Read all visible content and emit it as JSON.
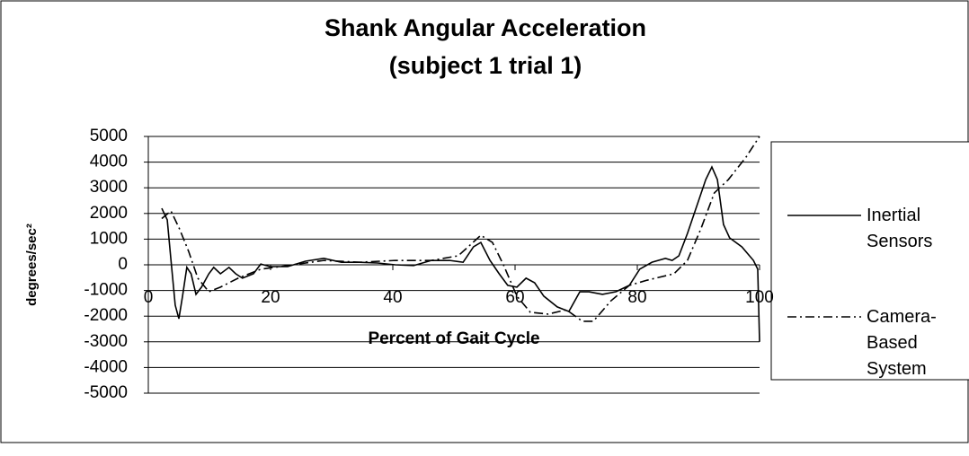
{
  "chart_data": {
    "type": "line",
    "title": "Shank Angular Acceleration",
    "subtitle": "(subject 1 trial 1)",
    "x_label": "Percent of Gait Cycle",
    "y_label": "degrees/sec²",
    "xlim": [
      0,
      100
    ],
    "xticks": [
      0,
      20,
      40,
      60,
      80,
      100
    ],
    "ylim": [
      -5000,
      5000
    ],
    "yticks": [
      -5000,
      -4000,
      -3000,
      -2000,
      -1000,
      0,
      1000,
      2000,
      3000,
      4000,
      5000
    ],
    "grid": true,
    "legend": "right",
    "series": [
      {
        "name": "Inertial Sensors",
        "color": "#000000",
        "dash": "solid",
        "x": [
          2.2,
          3.1,
          3.7,
          4.4,
          5,
          5.6,
          6.3,
          7,
          7.8,
          8.7,
          9.9,
          10.7,
          11.8,
          13.2,
          14.3,
          15.4,
          17.2,
          18.4,
          19.9,
          22.8,
          25.7,
          28.7,
          31.6,
          34.6,
          37.5,
          40.4,
          43.4,
          46.3,
          49.3,
          51.5,
          53.2,
          54.4,
          55.9,
          57.4,
          58.8,
          60.3,
          61.8,
          63.2,
          64.7,
          66.9,
          68.8,
          70.6,
          72.1,
          74.3,
          76.5,
          78.7,
          80.4,
          82.4,
          84.6,
          85.7,
          86.8,
          88.2,
          89.7,
          91.2,
          92.2,
          93.1,
          94.1,
          95.1,
          97.1,
          99,
          99.7,
          100
        ],
        "values": [
          2200,
          1750,
          200,
          -1570,
          -2100,
          -1220,
          -100,
          -350,
          -1150,
          -870,
          -350,
          -100,
          -350,
          -100,
          -350,
          -520,
          -350,
          30,
          -70,
          -70,
          140,
          250,
          100,
          100,
          70,
          0,
          -30,
          170,
          170,
          100,
          700,
          870,
          170,
          -350,
          -800,
          -870,
          -520,
          -700,
          -1220,
          -1640,
          -1820,
          -1050,
          -1050,
          -1150,
          -1050,
          -800,
          -170,
          100,
          250,
          170,
          350,
          1220,
          2270,
          3320,
          3810,
          3320,
          1570,
          1050,
          700,
          170,
          -170,
          -3000
        ]
      },
      {
        "name": "Camera-Based System",
        "color": "#000000",
        "dash": "dashdot",
        "x": [
          2.2,
          3.7,
          5.1,
          6.6,
          8.1,
          9.9,
          11.8,
          14.7,
          18.4,
          22.8,
          28.7,
          34.6,
          40.4,
          46.3,
          50.7,
          54.4,
          56.3,
          58.1,
          60.3,
          62.5,
          65.4,
          68.4,
          71,
          72.8,
          75.7,
          78.7,
          81.6,
          86,
          88.2,
          90.4,
          92.6,
          94.9,
          97.8,
          100
        ],
        "values": [
          1800,
          2100,
          1400,
          520,
          -520,
          -1050,
          -870,
          -520,
          -170,
          -30,
          170,
          100,
          170,
          170,
          350,
          1150,
          870,
          0,
          -1220,
          -1850,
          -1920,
          -1750,
          -2200,
          -2200,
          -1400,
          -800,
          -600,
          -350,
          170,
          1400,
          2800,
          3320,
          4200,
          5000
        ]
      }
    ]
  }
}
